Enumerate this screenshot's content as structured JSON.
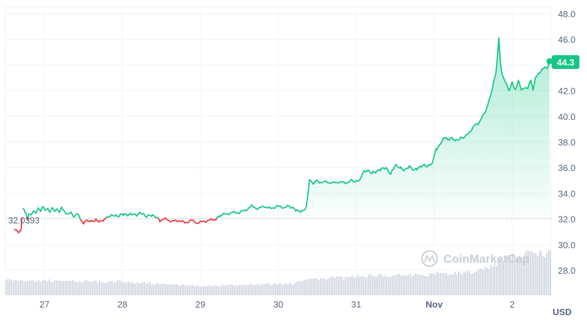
{
  "chart_data": {
    "type": "line",
    "x_start": "Oct 26",
    "x_end": "Nov 2",
    "x_ticks": [
      {
        "label": "27",
        "day": 27.0
      },
      {
        "label": "28",
        "day": 28.0
      },
      {
        "label": "29",
        "day": 29.0
      },
      {
        "label": "30",
        "day": 30.0
      },
      {
        "label": "31",
        "day": 31.0
      },
      {
        "label": "Nov",
        "day": 32.0,
        "bold": true
      },
      {
        "label": "2",
        "day": 33.0
      }
    ],
    "y_ticks": [
      "48.0",
      "46.0",
      "44.0",
      "42.0",
      "40.0",
      "38.0",
      "36.0",
      "34.0",
      "32.0",
      "30.0",
      "28.0"
    ],
    "ylim": [
      26.5,
      48.5
    ],
    "x_range_days": [
      26.5,
      33.5
    ],
    "unit": "USD",
    "baseline": {
      "label": "32.0393",
      "value": 32.0393
    },
    "last_price": {
      "label": "44.3",
      "value": 44.3
    },
    "colors": {
      "up": "#16c784",
      "down": "#ea3943",
      "volume": "#d1d6e0",
      "baseline": "#b8bec9"
    },
    "price_points": [
      [
        26.61,
        31.2
      ],
      [
        26.64,
        31.1
      ],
      [
        26.67,
        30.9
      ],
      [
        26.7,
        31.2
      ],
      [
        26.72,
        32.9
      ],
      [
        26.74,
        32.7
      ],
      [
        26.76,
        32.5
      ],
      [
        26.78,
        32.0
      ],
      [
        26.8,
        32.4
      ],
      [
        26.83,
        32.3
      ],
      [
        26.86,
        32.6
      ],
      [
        26.89,
        32.4
      ],
      [
        26.92,
        32.8
      ],
      [
        26.95,
        32.5
      ],
      [
        26.98,
        32.9
      ],
      [
        27.01,
        32.6
      ],
      [
        27.04,
        32.8
      ],
      [
        27.07,
        32.5
      ],
      [
        27.1,
        32.9
      ],
      [
        27.13,
        32.6
      ],
      [
        27.16,
        32.8
      ],
      [
        27.19,
        32.5
      ],
      [
        27.22,
        32.9
      ],
      [
        27.26,
        32.6
      ],
      [
        27.3,
        32.3
      ],
      [
        27.34,
        32.5
      ],
      [
        27.38,
        32.2
      ],
      [
        27.42,
        32.4
      ],
      [
        27.46,
        32.0
      ],
      [
        27.5,
        31.7
      ],
      [
        27.55,
        31.9
      ],
      [
        27.6,
        31.8
      ],
      [
        27.66,
        31.9
      ],
      [
        27.72,
        31.8
      ],
      [
        27.78,
        32.0
      ],
      [
        27.82,
        32.2
      ],
      [
        27.88,
        32.3
      ],
      [
        27.94,
        32.2
      ],
      [
        28.0,
        32.4
      ],
      [
        28.06,
        32.3
      ],
      [
        28.12,
        32.4
      ],
      [
        28.18,
        32.3
      ],
      [
        28.24,
        32.5
      ],
      [
        28.3,
        32.2
      ],
      [
        28.36,
        32.3
      ],
      [
        28.42,
        32.2
      ],
      [
        28.48,
        31.9
      ],
      [
        28.56,
        32.0
      ],
      [
        28.64,
        31.8
      ],
      [
        28.72,
        31.9
      ],
      [
        28.8,
        31.7
      ],
      [
        28.88,
        31.9
      ],
      [
        28.96,
        31.7
      ],
      [
        29.04,
        31.8
      ],
      [
        29.12,
        31.9
      ],
      [
        29.2,
        32.0
      ],
      [
        29.26,
        32.3
      ],
      [
        29.34,
        32.4
      ],
      [
        29.42,
        32.5
      ],
      [
        29.5,
        32.5
      ],
      [
        29.58,
        32.7
      ],
      [
        29.66,
        33.0
      ],
      [
        29.74,
        32.8
      ],
      [
        29.82,
        33.0
      ],
      [
        29.9,
        32.8
      ],
      [
        29.98,
        33.0
      ],
      [
        30.06,
        32.9
      ],
      [
        30.14,
        33.0
      ],
      [
        30.2,
        32.8
      ],
      [
        30.26,
        32.6
      ],
      [
        30.32,
        32.6
      ],
      [
        30.36,
        33.0
      ],
      [
        30.4,
        35.0
      ],
      [
        30.45,
        34.8
      ],
      [
        30.5,
        35.0
      ],
      [
        30.55,
        34.8
      ],
      [
        30.62,
        34.9
      ],
      [
        30.7,
        34.8
      ],
      [
        30.78,
        34.9
      ],
      [
        30.86,
        34.8
      ],
      [
        30.94,
        35.0
      ],
      [
        31.0,
        34.9
      ],
      [
        31.04,
        35.0
      ],
      [
        31.08,
        35.6
      ],
      [
        31.14,
        35.8
      ],
      [
        31.2,
        35.6
      ],
      [
        31.26,
        35.7
      ],
      [
        31.32,
        35.9
      ],
      [
        31.38,
        36.0
      ],
      [
        31.44,
        35.5
      ],
      [
        31.5,
        36.2
      ],
      [
        31.56,
        36.0
      ],
      [
        31.62,
        35.8
      ],
      [
        31.68,
        36.1
      ],
      [
        31.74,
        35.8
      ],
      [
        31.8,
        36.0
      ],
      [
        31.86,
        36.2
      ],
      [
        31.92,
        36.1
      ],
      [
        31.98,
        36.4
      ],
      [
        32.02,
        37.4
      ],
      [
        32.08,
        37.8
      ],
      [
        32.12,
        38.4
      ],
      [
        32.17,
        38.2
      ],
      [
        32.22,
        38.3
      ],
      [
        32.28,
        38.1
      ],
      [
        32.34,
        38.3
      ],
      [
        32.4,
        38.4
      ],
      [
        32.44,
        38.7
      ],
      [
        32.48,
        39.0
      ],
      [
        32.52,
        39.3
      ],
      [
        32.56,
        39.4
      ],
      [
        32.6,
        39.8
      ],
      [
        32.65,
        40.3
      ],
      [
        32.7,
        41.1
      ],
      [
        32.74,
        42.0
      ],
      [
        32.76,
        42.6
      ],
      [
        32.79,
        43.3
      ],
      [
        32.81,
        44.6
      ],
      [
        32.83,
        46.2
      ],
      [
        32.85,
        44.2
      ],
      [
        32.87,
        43.4
      ],
      [
        32.9,
        42.9
      ],
      [
        32.93,
        42.5
      ],
      [
        32.96,
        42.0
      ],
      [
        33.0,
        42.6
      ],
      [
        33.04,
        42.1
      ],
      [
        33.08,
        42.8
      ],
      [
        33.12,
        42.0
      ],
      [
        33.16,
        42.3
      ],
      [
        33.2,
        42.2
      ],
      [
        33.24,
        42.8
      ],
      [
        33.27,
        42.0
      ],
      [
        33.3,
        43.0
      ],
      [
        33.34,
        43.4
      ],
      [
        33.38,
        43.6
      ],
      [
        33.42,
        43.8
      ],
      [
        33.45,
        43.7
      ],
      [
        33.48,
        44.3
      ]
    ],
    "volume": [
      [
        26.5,
        1.0
      ],
      [
        27.0,
        0.96
      ],
      [
        27.5,
        0.92
      ],
      [
        28.0,
        0.88
      ],
      [
        28.5,
        0.72
      ],
      [
        29.0,
        0.6
      ],
      [
        29.5,
        0.68
      ],
      [
        30.0,
        0.72
      ],
      [
        30.2,
        0.8
      ],
      [
        30.4,
        1.05
      ],
      [
        30.8,
        1.15
      ],
      [
        31.2,
        1.3
      ],
      [
        31.6,
        1.3
      ],
      [
        32.0,
        1.4
      ],
      [
        32.4,
        1.45
      ],
      [
        32.7,
        1.8
      ],
      [
        32.9,
        2.4
      ],
      [
        33.2,
        2.7
      ],
      [
        33.5,
        2.8
      ]
    ],
    "watermark": "CoinMarketCap"
  }
}
